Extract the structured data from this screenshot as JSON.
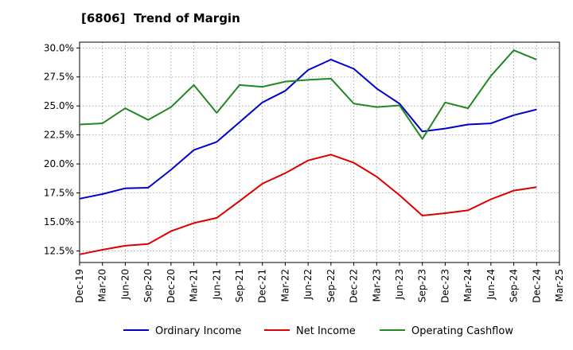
{
  "chart_data": {
    "type": "line",
    "title": "[6806]  Trend of Margin",
    "xlabel": "",
    "ylabel": "",
    "ylim": [
      11.5,
      30.5
    ],
    "yticks": [
      "12.5%",
      "15.0%",
      "17.5%",
      "20.0%",
      "22.5%",
      "25.0%",
      "27.5%",
      "30.0%"
    ],
    "ytick_values": [
      12.5,
      15.0,
      17.5,
      20.0,
      22.5,
      25.0,
      27.5,
      30.0
    ],
    "x_tick_labels": [
      "Dec-19",
      "Mar-20",
      "Jun-20",
      "Sep-20",
      "Dec-20",
      "Mar-21",
      "Jun-21",
      "Sep-21",
      "Dec-21",
      "Mar-22",
      "Jun-22",
      "Sep-22",
      "Dec-22",
      "Mar-23",
      "Jun-23",
      "Sep-23",
      "Dec-23",
      "Mar-24",
      "Jun-24",
      "Sep-24",
      "Dec-24",
      "Mar-25"
    ],
    "x": [
      "Dec-19",
      "Mar-20",
      "Jun-20",
      "Sep-20",
      "Dec-20",
      "Mar-21",
      "Jun-21",
      "Sep-21",
      "Dec-21",
      "Mar-22",
      "Jun-22",
      "Sep-22",
      "Dec-22",
      "Mar-23",
      "Jun-23",
      "Sep-23",
      "Dec-23",
      "Mar-24",
      "Jun-24",
      "Sep-24",
      "Dec-24"
    ],
    "grid": true,
    "legend_position": "bottom",
    "series": [
      {
        "name": "Ordinary Income",
        "color": "#0000cc",
        "values": [
          17.0,
          17.4,
          17.9,
          17.95,
          19.5,
          21.2,
          21.9,
          23.6,
          25.3,
          26.3,
          28.1,
          29.0,
          28.2,
          26.5,
          25.2,
          22.8,
          23.05,
          23.4,
          23.5,
          24.2,
          24.7
        ]
      },
      {
        "name": "Net Income",
        "color": "#dd0000",
        "values": [
          12.2,
          12.6,
          12.95,
          13.1,
          14.2,
          14.9,
          15.35,
          16.8,
          18.3,
          19.2,
          20.3,
          20.8,
          20.1,
          18.9,
          17.3,
          15.55,
          15.75,
          16.0,
          16.95,
          17.7,
          18.0
        ]
      },
      {
        "name": "Operating Cashflow",
        "color": "#228822",
        "values": [
          23.4,
          23.5,
          24.8,
          23.8,
          24.9,
          26.8,
          24.4,
          26.8,
          26.65,
          27.1,
          27.25,
          27.35,
          25.2,
          24.9,
          25.05,
          22.15,
          25.3,
          24.8,
          27.6,
          29.8,
          29.0
        ]
      }
    ]
  }
}
